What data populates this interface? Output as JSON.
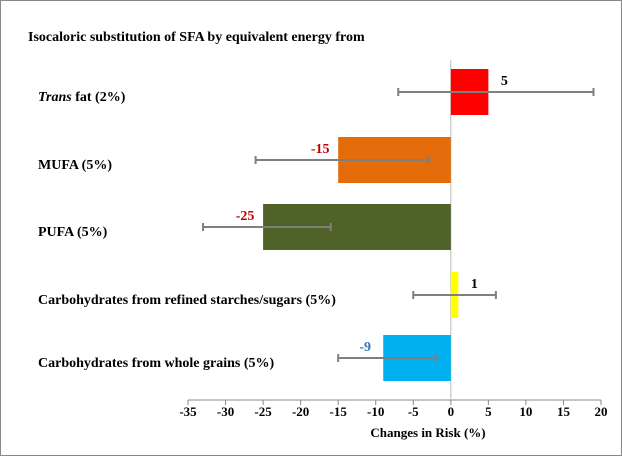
{
  "chart_data": {
    "type": "bar",
    "orientation": "horizontal",
    "title": "Isocaloric substitution of SFA by equivalent energy from",
    "xlabel": "Changes in Risk (%)",
    "categories": [
      "Trans fat (2%)",
      "MUFA (5%)",
      "PUFA (5%)",
      "Carbohydrates from refined starches/sugars (5%)",
      "Carbohydrates from whole grains (5%)"
    ],
    "series": [
      {
        "values": [
          5,
          -15,
          -25,
          1,
          -9
        ],
        "ci_low": [
          -7,
          -26,
          -33,
          -5,
          -15
        ],
        "ci_high": [
          19,
          -3,
          -16,
          6,
          -2
        ],
        "colors": [
          "#ff0000",
          "#e46c0a",
          "#4f6228",
          "#ffff00",
          "#00b0f0"
        ],
        "value_label_colors": [
          "#000000",
          "#c00000",
          "#c00000",
          "#000000",
          "#2e75b6"
        ]
      }
    ],
    "xlim": [
      -35,
      20
    ],
    "xticks": [
      -35,
      -30,
      -25,
      -20,
      -15,
      -10,
      -5,
      0,
      5,
      10,
      15,
      20
    ],
    "errorbar_color": "#7f7f7f"
  }
}
